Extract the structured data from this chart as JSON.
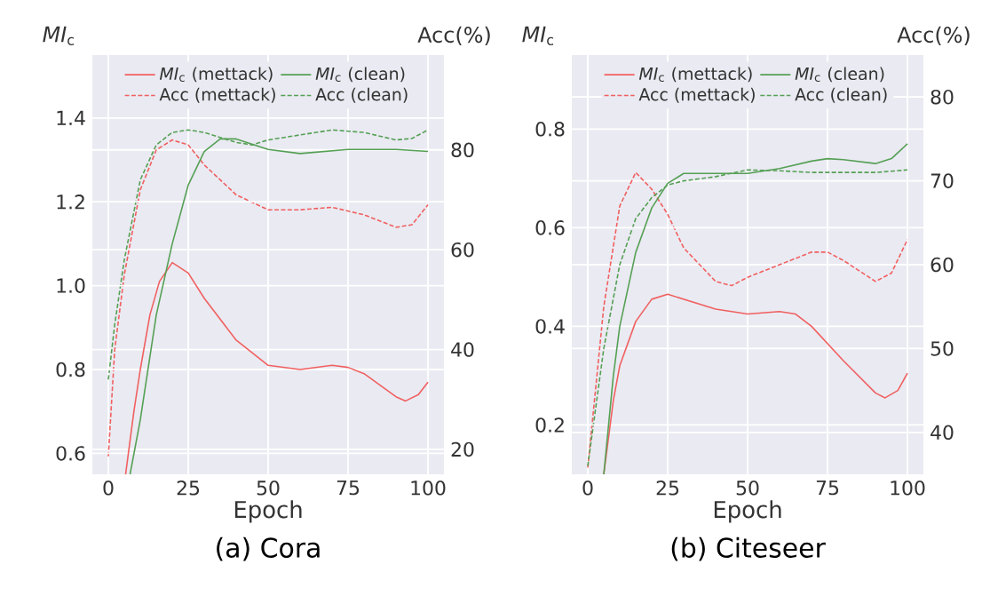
{
  "chart_data": [
    {
      "type": "line",
      "title": "(a) Cora",
      "xlabel": "Epoch",
      "ylabel": "*MI*$_{c}$",
      "y2label": "Acc(%)",
      "xlim": [
        -5,
        105
      ],
      "xticks": [
        0,
        25,
        50,
        75,
        100
      ],
      "ylim": [
        0.55,
        1.55
      ],
      "yticks": [
        0.6,
        0.8,
        {
          "value": 1.0,
          "label": "1.0"
        },
        1.2,
        1.4
      ],
      "y2lim": [
        15,
        99
      ],
      "y2ticks": [
        20,
        40,
        60,
        80
      ],
      "grid": true,
      "legend": "top",
      "marker": "none",
      "series": [
        {
          "name": "*MI*$_{c}$ (mettack)",
          "color": "#f06060",
          "line_style": "solid",
          "x": [
            5.4,
            8,
            10,
            13,
            16,
            20,
            25,
            30,
            40,
            50,
            60,
            70,
            75,
            80,
            90,
            93,
            97,
            100
          ],
          "values": [
            0.55,
            0.7,
            0.8,
            0.93,
            1.01,
            1.055,
            1.03,
            0.97,
            0.87,
            0.81,
            0.8,
            0.81,
            0.805,
            0.79,
            0.735,
            0.725,
            0.74,
            0.77
          ]
        },
        {
          "name": "*MI*$_{c}$ (clean)",
          "color": "#55a055",
          "line_style": "solid",
          "x": [
            6.8,
            10,
            15,
            20,
            25,
            30,
            35,
            40,
            50,
            60,
            75,
            90,
            100
          ],
          "values": [
            0.55,
            0.68,
            0.93,
            1.1,
            1.24,
            1.32,
            1.35,
            1.35,
            1.325,
            1.315,
            1.325,
            1.325,
            1.32
          ]
        },
        {
          "name": "Acc (mettack)",
          "color": "#f06060",
          "line_style": "dashed",
          "axis": "y2",
          "x": [
            0,
            2,
            5,
            10,
            15,
            20,
            25,
            30,
            40,
            50,
            60,
            70,
            80,
            90,
            95,
            100
          ],
          "values": [
            18.6,
            40,
            55,
            72,
            80,
            82,
            81,
            77,
            71,
            68,
            68,
            68.5,
            67,
            64.5,
            65,
            69
          ]
        },
        {
          "name": "Acc (clean)",
          "color": "#55a055",
          "line_style": "dashed",
          "axis": "y2",
          "x": [
            0,
            2,
            5,
            10,
            15,
            20,
            25,
            30,
            40,
            45,
            50,
            60,
            70,
            80,
            90,
            95,
            100
          ],
          "values": [
            34,
            45,
            58,
            74,
            81,
            83.5,
            84,
            83.5,
            81.5,
            81,
            82,
            83,
            84,
            83.5,
            82,
            82.3,
            84
          ]
        }
      ]
    },
    {
      "type": "line",
      "title": "(b) Citeseer",
      "xlabel": "Epoch",
      "ylabel": "*MI*$_{c}$",
      "y2label": "Acc(%)",
      "xlim": [
        -5,
        105
      ],
      "xticks": [
        0,
        25,
        50,
        75,
        100
      ],
      "ylim": [
        0.1,
        0.95
      ],
      "yticks": [
        0.2,
        0.4,
        0.6,
        0.8
      ],
      "y2lim": [
        35,
        85
      ],
      "y2ticks": [
        40,
        50,
        60,
        70,
        80
      ],
      "grid": true,
      "legend": "top",
      "marker": "none",
      "series": [
        {
          "name": "*MI*$_{c}$ (mettack)",
          "color": "#f06060",
          "line_style": "solid",
          "x": [
            5,
            8,
            10,
            15,
            20,
            25,
            30,
            40,
            50,
            60,
            65,
            70,
            80,
            90,
            93,
            97,
            100
          ],
          "values": [
            0.1,
            0.25,
            0.32,
            0.41,
            0.455,
            0.465,
            0.455,
            0.435,
            0.425,
            0.43,
            0.425,
            0.4,
            0.33,
            0.265,
            0.255,
            0.27,
            0.305
          ]
        },
        {
          "name": "*MI*$_{c}$ (clean)",
          "color": "#55a055",
          "line_style": "solid",
          "x": [
            5,
            8,
            10,
            15,
            20,
            25,
            30,
            40,
            50,
            60,
            70,
            75,
            80,
            90,
            95,
            100
          ],
          "values": [
            0.1,
            0.3,
            0.4,
            0.55,
            0.64,
            0.69,
            0.71,
            0.71,
            0.71,
            0.72,
            0.735,
            0.74,
            0.738,
            0.73,
            0.74,
            0.77
          ]
        },
        {
          "name": "Acc (mettack)",
          "color": "#f06060",
          "line_style": "dashed",
          "axis": "y2",
          "x": [
            0,
            5,
            10,
            15,
            20,
            25,
            30,
            40,
            45,
            50,
            60,
            70,
            75,
            80,
            90,
            95,
            100
          ],
          "values": [
            35.8,
            55,
            67,
            71,
            69,
            66,
            62,
            58,
            57.5,
            58.5,
            60,
            61.5,
            61.5,
            60.5,
            58,
            59,
            63
          ]
        },
        {
          "name": "Acc (clean)",
          "color": "#55a055",
          "line_style": "dashed",
          "axis": "y2",
          "x": [
            0,
            5,
            10,
            15,
            20,
            25,
            30,
            40,
            50,
            60,
            70,
            80,
            90,
            100
          ],
          "values": [
            36,
            50,
            60,
            65.5,
            68,
            69.5,
            70,
            70.5,
            71.3,
            71.2,
            71,
            71,
            71,
            71.3
          ]
        }
      ]
    }
  ]
}
